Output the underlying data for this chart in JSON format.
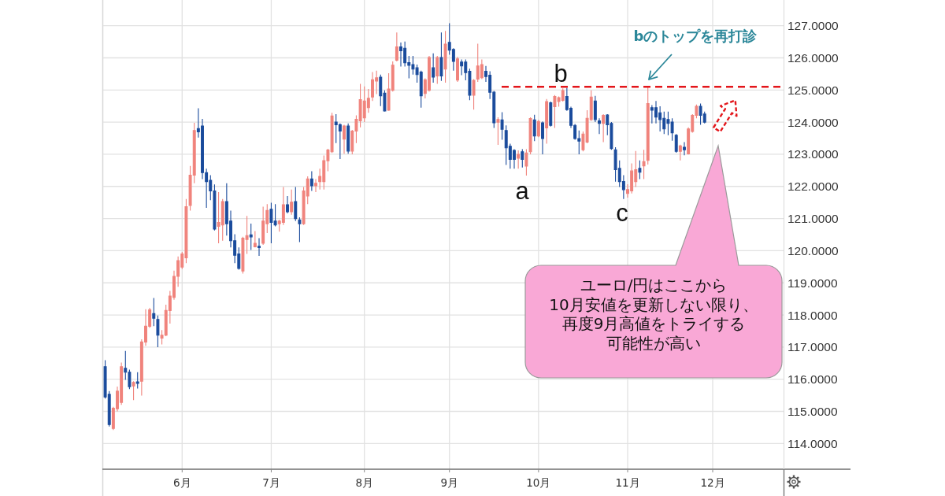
{
  "chart_data": {
    "type": "candlestick",
    "categories": [
      null,
      null,
      null,
      null,
      null,
      null,
      null,
      null,
      null,
      null,
      null,
      null,
      null,
      null,
      null,
      null,
      null,
      null,
      null,
      "6月",
      null,
      null,
      null,
      null,
      null,
      null,
      null,
      null,
      null,
      null,
      null,
      null,
      null,
      null,
      null,
      null,
      null,
      null,
      null,
      null,
      null,
      "7月",
      null,
      null,
      null,
      null,
      null,
      null,
      null,
      null,
      null,
      null,
      null,
      null,
      null,
      null,
      null,
      null,
      null,
      null,
      null,
      null,
      null,
      null,
      "8月",
      null,
      null,
      null,
      null,
      null,
      null,
      null,
      null,
      null,
      null,
      null,
      null,
      null,
      null,
      null,
      null,
      null,
      null,
      null,
      null,
      "9月",
      null,
      null,
      null,
      null,
      null,
      null,
      null,
      null,
      null,
      null,
      null,
      null,
      null,
      null,
      null,
      null,
      null,
      null,
      null,
      null,
      null,
      "10月",
      null,
      null,
      null,
      null,
      null,
      null,
      null,
      null,
      null,
      null,
      null,
      null,
      null,
      null,
      null,
      null,
      null,
      null,
      null,
      null,
      null,
      "11月",
      null,
      null,
      null,
      null,
      null,
      null,
      null,
      null,
      null,
      null,
      null,
      null,
      null,
      null,
      null,
      null,
      null,
      null,
      null,
      null,
      "12月",
      null,
      null,
      null,
      null,
      null,
      null,
      null,
      null,
      null,
      null,
      null,
      null,
      null,
      null,
      null,
      null,
      null
    ],
    "ohlc": [
      [
        116.39,
        116.59,
        115.4,
        115.45
      ],
      [
        115.53,
        115.63,
        114.53,
        114.59
      ],
      [
        114.47,
        115.14,
        114.42,
        115.1
      ],
      [
        115.08,
        115.77,
        115.0,
        115.63
      ],
      [
        115.28,
        116.52,
        115.2,
        116.39
      ],
      [
        116.34,
        116.88,
        115.98,
        116.22
      ],
      [
        116.22,
        116.3,
        115.69,
        115.77
      ],
      [
        115.79,
        115.94,
        115.35,
        115.9
      ],
      [
        115.92,
        116.22,
        115.71,
        115.87
      ],
      [
        115.94,
        117.24,
        115.49,
        117.16
      ],
      [
        117.16,
        118.18,
        117.04,
        117.65
      ],
      [
        117.65,
        118.22,
        117.6,
        118.16
      ],
      [
        118.04,
        118.53,
        117.65,
        117.9
      ],
      [
        117.86,
        117.98,
        117.0,
        117.37
      ],
      [
        117.28,
        117.53,
        117.08,
        117.37
      ],
      [
        117.37,
        118.32,
        117.34,
        118.14
      ],
      [
        118.14,
        118.75,
        117.73,
        118.59
      ],
      [
        118.55,
        119.38,
        118.47,
        119.2
      ],
      [
        119.2,
        119.82,
        118.88,
        119.69
      ],
      [
        119.49,
        119.96,
        119.43,
        119.9
      ],
      [
        119.78,
        121.61,
        119.61,
        121.37
      ],
      [
        121.41,
        122.64,
        121.25,
        122.35
      ],
      [
        122.35,
        123.98,
        122.1,
        123.74
      ],
      [
        123.8,
        124.43,
        123.52,
        123.7
      ],
      [
        123.88,
        124.1,
        122.23,
        122.43
      ],
      [
        122.43,
        122.55,
        121.33,
        122.15
      ],
      [
        122.19,
        122.35,
        121.57,
        121.86
      ],
      [
        121.86,
        122.06,
        120.63,
        120.67
      ],
      [
        120.76,
        121.82,
        120.23,
        120.88
      ],
      [
        120.8,
        121.61,
        120.31,
        121.53
      ],
      [
        121.53,
        122.1,
        120.47,
        120.84
      ],
      [
        120.92,
        121.25,
        120.1,
        120.31
      ],
      [
        120.31,
        120.51,
        119.61,
        119.86
      ],
      [
        119.9,
        120.1,
        119.41,
        119.45
      ],
      [
        119.37,
        120.43,
        119.29,
        120.39
      ],
      [
        120.35,
        121.08,
        119.9,
        120.47
      ],
      [
        120.49,
        120.84,
        120.02,
        120.43
      ],
      [
        120.12,
        120.61,
        120.1,
        120.23
      ],
      [
        120.14,
        120.39,
        119.84,
        120.1
      ],
      [
        120.23,
        121.37,
        120.18,
        120.92
      ],
      [
        120.84,
        121.45,
        120.55,
        121.25
      ],
      [
        121.29,
        121.49,
        120.23,
        120.88
      ],
      [
        120.92,
        121.45,
        120.76,
        120.8
      ],
      [
        120.84,
        120.96,
        120.59,
        120.92
      ],
      [
        120.88,
        121.98,
        120.8,
        121.43
      ],
      [
        121.43,
        121.7,
        121.16,
        121.21
      ],
      [
        121.21,
        121.9,
        121.12,
        121.51
      ],
      [
        121.53,
        121.98,
        120.92,
        121.0
      ],
      [
        120.96,
        121.04,
        120.27,
        120.84
      ],
      [
        120.84,
        121.98,
        120.8,
        121.86
      ],
      [
        121.7,
        122.31,
        121.45,
        122.23
      ],
      [
        122.23,
        122.47,
        121.86,
        122.02
      ],
      [
        122.02,
        122.23,
        121.82,
        122.1
      ],
      [
        122.15,
        122.55,
        121.9,
        122.31
      ],
      [
        122.15,
        122.96,
        121.9,
        122.8
      ],
      [
        122.8,
        123.17,
        122.47,
        123.13
      ],
      [
        123.08,
        124.29,
        123.04,
        124.19
      ],
      [
        124.0,
        124.25,
        123.35,
        123.92
      ],
      [
        123.92,
        123.96,
        122.85,
        123.72
      ],
      [
        123.47,
        123.92,
        123.02,
        123.88
      ],
      [
        123.88,
        123.96,
        123.02,
        123.1
      ],
      [
        123.1,
        123.76,
        123.0,
        123.72
      ],
      [
        123.72,
        124.21,
        123.35,
        124.09
      ],
      [
        124.04,
        125.19,
        123.84,
        124.7
      ],
      [
        124.13,
        125.11,
        124.0,
        124.66
      ],
      [
        124.45,
        125.03,
        124.29,
        124.74
      ],
      [
        124.78,
        125.56,
        124.66,
        125.32
      ],
      [
        125.28,
        125.6,
        124.87,
        125.38
      ],
      [
        125.4,
        125.48,
        124.5,
        124.82
      ],
      [
        124.9,
        124.99,
        124.33,
        124.35
      ],
      [
        124.37,
        125.52,
        124.35,
        125.03
      ],
      [
        124.99,
        125.89,
        124.95,
        125.77
      ],
      [
        125.93,
        126.79,
        125.89,
        126.34
      ],
      [
        126.34,
        126.48,
        125.73,
        126.22
      ],
      [
        126.3,
        126.51,
        125.73,
        125.85
      ],
      [
        125.85,
        126.06,
        125.36,
        125.77
      ],
      [
        125.79,
        126.06,
        125.48,
        125.65
      ],
      [
        125.69,
        125.79,
        125.23,
        125.48
      ],
      [
        125.56,
        125.6,
        124.45,
        124.82
      ],
      [
        124.89,
        125.36,
        124.74,
        125.32
      ],
      [
        124.99,
        126.06,
        124.95,
        126.01
      ],
      [
        125.69,
        126.14,
        125.23,
        125.4
      ],
      [
        125.44,
        126.06,
        125.19,
        126.01
      ],
      [
        126.01,
        126.79,
        125.28,
        125.44
      ],
      [
        125.65,
        126.84,
        125.23,
        126.43
      ],
      [
        126.48,
        127.08,
        126.1,
        126.24
      ],
      [
        126.26,
        126.3,
        125.6,
        125.89
      ],
      [
        125.31,
        126.03,
        125.25,
        125.97
      ],
      [
        125.87,
        125.95,
        125.46,
        125.75
      ],
      [
        125.87,
        125.95,
        125.3,
        125.54
      ],
      [
        125.58,
        125.66,
        124.68,
        124.84
      ],
      [
        124.84,
        125.34,
        124.39,
        125.3
      ],
      [
        125.34,
        126.44,
        125.25,
        125.75
      ],
      [
        125.38,
        125.95,
        125.34,
        125.79
      ],
      [
        125.58,
        125.75,
        125.25,
        125.42
      ],
      [
        125.46,
        125.58,
        124.72,
        124.93
      ],
      [
        124.93,
        124.97,
        123.82,
        123.98
      ],
      [
        124.0,
        124.15,
        123.29,
        124.08
      ],
      [
        124.07,
        124.31,
        123.45,
        123.78
      ],
      [
        123.74,
        123.9,
        122.67,
        123.2
      ],
      [
        123.25,
        123.33,
        122.55,
        122.84
      ],
      [
        123.12,
        123.16,
        122.55,
        122.84
      ],
      [
        122.88,
        123.12,
        122.55,
        123.0
      ],
      [
        123.08,
        123.16,
        122.59,
        122.84
      ],
      [
        122.63,
        123.16,
        122.34,
        123.04
      ],
      [
        123.08,
        124.15,
        123.0,
        124.11
      ],
      [
        124.07,
        124.23,
        123.41,
        123.57
      ],
      [
        123.57,
        124.07,
        123.53,
        124.02
      ],
      [
        123.98,
        124.02,
        123.0,
        123.49
      ],
      [
        123.82,
        124.72,
        123.33,
        124.64
      ],
      [
        124.6,
        124.64,
        123.86,
        123.9
      ],
      [
        124.48,
        124.84,
        123.82,
        124.8
      ],
      [
        124.64,
        124.8,
        124.48,
        124.76
      ],
      [
        124.68,
        125.05,
        124.64,
        124.98
      ],
      [
        124.8,
        125.07,
        124.35,
        124.39
      ],
      [
        124.43,
        124.48,
        123.82,
        123.9
      ],
      [
        123.9,
        123.94,
        123.45,
        123.49
      ],
      [
        123.49,
        123.74,
        123.0,
        123.41
      ],
      [
        123.14,
        123.71,
        123.09,
        123.63
      ],
      [
        123.38,
        124.37,
        123.34,
        124.12
      ],
      [
        124.08,
        124.99,
        124.04,
        124.78
      ],
      [
        124.66,
        124.82,
        124.0,
        124.08
      ],
      [
        124.04,
        124.12,
        123.63,
        123.96
      ],
      [
        123.96,
        124.25,
        123.38,
        124.21
      ],
      [
        124.22,
        124.25,
        123.59,
        123.92
      ],
      [
        123.96,
        124.0,
        123.14,
        123.18
      ],
      [
        123.14,
        123.22,
        122.15,
        122.52
      ],
      [
        122.56,
        122.81,
        121.98,
        122.15
      ],
      [
        122.15,
        122.35,
        121.61,
        121.9
      ],
      [
        121.78,
        122.07,
        121.65,
        121.9
      ],
      [
        121.86,
        122.72,
        121.78,
        122.48
      ],
      [
        122.15,
        123.1,
        121.98,
        122.52
      ],
      [
        122.56,
        122.81,
        122.23,
        122.44
      ],
      [
        122.64,
        123.14,
        122.23,
        122.77
      ],
      [
        122.81,
        125.11,
        122.68,
        124.58
      ],
      [
        124.45,
        124.53,
        123.96,
        124.37
      ],
      [
        124.45,
        124.66,
        123.96,
        124.16
      ],
      [
        124.29,
        124.49,
        123.71,
        124.08
      ],
      [
        124.12,
        124.33,
        123.63,
        123.79
      ],
      [
        124.08,
        124.33,
        123.59,
        123.96
      ],
      [
        124.0,
        124.12,
        123.42,
        123.67
      ],
      [
        123.59,
        123.63,
        123.05,
        123.09
      ],
      [
        123.09,
        123.3,
        122.81,
        123.26
      ],
      [
        123.22,
        123.38,
        122.97,
        123.14
      ],
      [
        123.01,
        123.84,
        122.99,
        123.79
      ],
      [
        123.71,
        124.25,
        123.67,
        124.21
      ],
      [
        124.21,
        124.55,
        124.12,
        124.49
      ],
      [
        124.49,
        124.58,
        123.92,
        124.21
      ],
      [
        124.25,
        124.33,
        123.96,
        124.0
      ],
      null,
      null,
      null,
      null,
      null,
      null,
      null,
      null,
      null,
      null,
      null,
      null,
      null,
      null,
      null,
      null,
      null,
      null,
      null
    ],
    "colors": [
      "#1a4b9c",
      "#1a4b9c",
      "#f0837c",
      "#f0837c",
      "#f0837c",
      "#1a4b9c",
      "#1a4b9c",
      "#f0837c",
      "#1a4b9c",
      "#f0837c",
      "#f0837c",
      "#f0837c",
      "#1a4b9c",
      "#1a4b9c",
      "#f0837c",
      "#f0837c",
      "#f0837c",
      "#f0837c",
      "#f0837c",
      "#f0837c",
      "#f0837c",
      "#f0837c",
      "#f0837c",
      "#1a4b9c",
      "#1a4b9c",
      "#1a4b9c",
      "#1a4b9c",
      "#1a4b9c",
      "#f0837c",
      "#f0837c",
      "#1a4b9c",
      "#1a4b9c",
      "#1a4b9c",
      "#1a4b9c",
      "#f0837c",
      "#f0837c",
      "#1a4b9c",
      "#f0837c",
      "#1a4b9c",
      "#f0837c",
      "#f0837c",
      "#1a4b9c",
      "#1a4b9c",
      "#f0837c",
      "#f0837c",
      "#1a4b9c",
      "#f0837c",
      "#1a4b9c",
      "#1a4b9c",
      "#f0837c",
      "#f0837c",
      "#1a4b9c",
      "#f0837c",
      "#f0837c",
      "#f0837c",
      "#f0837c",
      "#f0837c",
      "#1a4b9c",
      "#1a4b9c",
      "#f0837c",
      "#1a4b9c",
      "#f0837c",
      "#f0837c",
      "#f0837c",
      "#f0837c",
      "#f0837c",
      "#f0837c",
      "#f0837c",
      "#1a4b9c",
      "#1a4b9c",
      "#f0837c",
      "#f0837c",
      "#f0837c",
      "#1a4b9c",
      "#1a4b9c",
      "#1a4b9c",
      "#1a4b9c",
      "#1a4b9c",
      "#1a4b9c",
      "#f0837c",
      "#f0837c",
      "#1a4b9c",
      "#f0837c",
      "#1a4b9c",
      "#f0837c",
      "#1a4b9c",
      "#1a4b9c",
      "#f0837c",
      "#1a4b9c",
      "#1a4b9c",
      "#1a4b9c",
      "#f0837c",
      "#f0837c",
      "#f0837c",
      "#1a4b9c",
      "#1a4b9c",
      "#1a4b9c",
      "#f0837c",
      "#1a4b9c",
      "#1a4b9c",
      "#1a4b9c",
      "#1a4b9c",
      "#f0837c",
      "#1a4b9c",
      "#f0837c",
      "#f0837c",
      "#1a4b9c",
      "#f0837c",
      "#1a4b9c",
      "#f0837c",
      "#1a4b9c",
      "#f0837c",
      "#f0837c",
      "#f0837c",
      "#1a4b9c",
      "#1a4b9c",
      "#1a4b9c",
      "#1a4b9c",
      "#f0837c",
      "#f0837c",
      "#f0837c",
      "#1a4b9c",
      "#1a4b9c",
      "#f0837c",
      "#1a4b9c",
      "#1a4b9c",
      "#1a4b9c",
      "#1a4b9c",
      "#1a4b9c",
      "#f0837c",
      "#f0837c",
      "#f0837c",
      "#1a4b9c",
      "#f0837c",
      "#f0837c",
      "#1a4b9c",
      "#1a4b9c",
      "#1a4b9c",
      "#1a4b9c",
      "#1a4b9c",
      "#1a4b9c",
      "#1a4b9c",
      "#f0837c",
      "#1a4b9c",
      "#f0837c",
      "#f0837c",
      "#f0837c",
      "#1a4b9c",
      "#1a4b9c",
      null,
      null,
      null,
      null,
      null,
      null,
      null,
      null,
      null,
      null,
      null,
      null,
      null,
      null,
      null,
      null,
      null,
      null,
      null
    ],
    "ylim": [
      113.2,
      127.8
    ],
    "yticks": [
      {
        "value": 114,
        "label": "114.0000"
      },
      {
        "value": 115,
        "label": "115.0000"
      },
      {
        "value": 116,
        "label": "116.0000"
      },
      {
        "value": 117,
        "label": "117.0000"
      },
      {
        "value": 118,
        "label": "118.0000"
      },
      {
        "value": 119,
        "label": "119.0000"
      },
      {
        "value": 120,
        "label": "120.0000"
      },
      {
        "value": 121,
        "label": "121.0000"
      },
      {
        "value": 122,
        "label": "122.0000"
      },
      {
        "value": 123,
        "label": "123.0000"
      },
      {
        "value": 124,
        "label": "124.0000"
      },
      {
        "value": 125,
        "label": "125.0000"
      },
      {
        "value": 126,
        "label": "126.0000"
      },
      {
        "value": 127,
        "label": "127.0000"
      }
    ],
    "grid": true,
    "ref_lines": [
      {
        "axis": "y",
        "value": 125.1,
        "color": "#e3161b",
        "line_style": "dashed"
      }
    ],
    "annotations": [
      "a",
      "b",
      "c",
      "bのトップを再打診",
      "ユーロ/円はここから10月安値を更新しない限り、再度9月高値をトライする可能性が高い"
    ]
  }
}
